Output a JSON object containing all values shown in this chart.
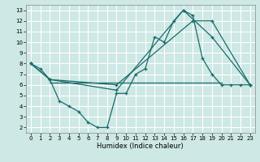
{
  "title": "",
  "xlabel": "Humidex (Indice chaleur)",
  "bg_color": "#cde8e5",
  "grid_color": "#ffffff",
  "line_color": "#1a6b6b",
  "xlim": [
    -0.5,
    23.5
  ],
  "ylim": [
    1.5,
    13.5
  ],
  "xticks": [
    0,
    1,
    2,
    3,
    4,
    5,
    6,
    7,
    8,
    9,
    10,
    11,
    12,
    13,
    14,
    15,
    16,
    17,
    18,
    19,
    20,
    21,
    22,
    23
  ],
  "yticks": [
    2,
    3,
    4,
    5,
    6,
    7,
    8,
    9,
    10,
    11,
    12,
    13
  ],
  "line1": {
    "x": [
      0,
      1,
      2,
      3,
      4,
      5,
      6,
      7,
      8,
      9,
      10,
      11,
      12,
      13,
      14,
      15,
      16,
      17,
      18,
      19,
      20,
      21,
      22,
      23
    ],
    "y": [
      8,
      7.5,
      6.5,
      4.5,
      4,
      3.5,
      2.5,
      2,
      2,
      5.2,
      5.2,
      7,
      7.5,
      10.5,
      10,
      12,
      13,
      12.5,
      8.5,
      7,
      6,
      6,
      6,
      6
    ]
  },
  "line2": {
    "x": [
      0,
      2,
      9,
      16,
      19,
      23
    ],
    "y": [
      8,
      6.5,
      5.5,
      13,
      10.5,
      6
    ]
  },
  "line3": {
    "x": [
      0,
      2,
      9,
      17,
      19,
      23
    ],
    "y": [
      8,
      6.5,
      6,
      12,
      12,
      6
    ]
  },
  "line4": {
    "x": [
      2,
      20
    ],
    "y": [
      6.2,
      6.2
    ]
  }
}
